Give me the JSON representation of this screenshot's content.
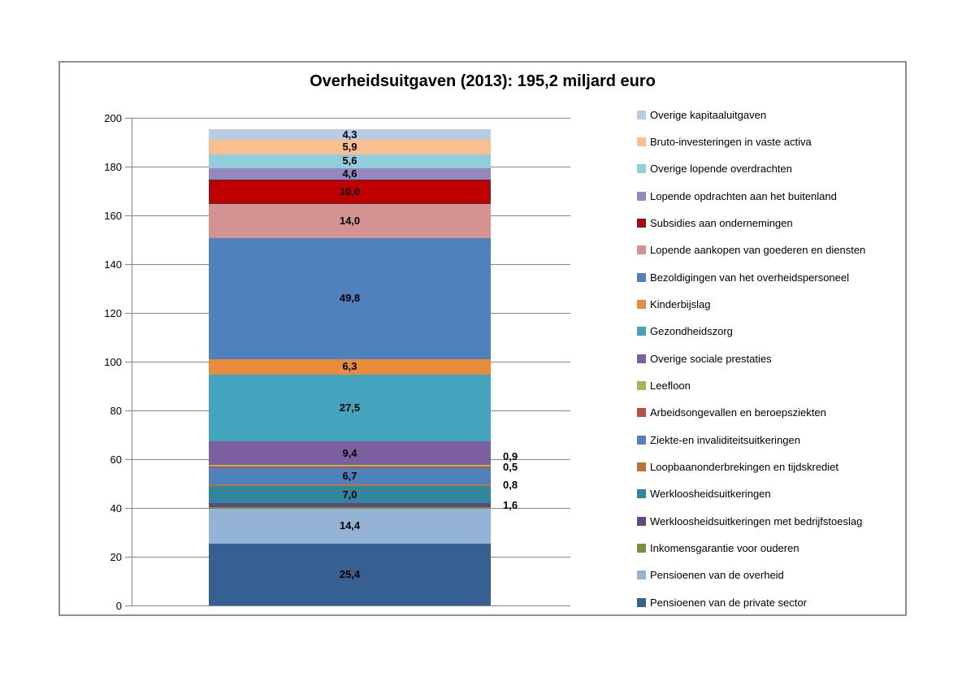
{
  "title": "Overheidsuitgaven (2013): 195,2 miljard euro",
  "chart_data": {
    "type": "bar",
    "subtype": "stacked-single-column",
    "title": "Overheidsuitgaven (2013): 195,2 miljard euro",
    "total_label": "195,2",
    "ylim": [
      0,
      200
    ],
    "yticks": [
      0,
      20,
      40,
      60,
      80,
      100,
      120,
      140,
      160,
      180,
      200
    ],
    "grid": true,
    "legend_position": "right",
    "axis_color": "#878787",
    "series_bottom_to_top": [
      {
        "name": "Pensioenen van de private sector",
        "value": 25.4,
        "label": "25,4",
        "color": "#376092",
        "label_pos": "inside"
      },
      {
        "name": "Pensioenen van de overheid",
        "value": 14.4,
        "label": "14,4",
        "color": "#95B3D7",
        "label_pos": "inside"
      },
      {
        "name": "Inkomensgarantie voor ouderen",
        "value": 0.5,
        "label": "",
        "color": "#76923C",
        "label_pos": "none"
      },
      {
        "name": "Werkloosheidsuitkeringen met bedrijfstoeslag",
        "value": 1.6,
        "label": "1,6",
        "color": "#5F497A",
        "label_pos": "outside"
      },
      {
        "name": "Werkloosheidsuitkeringen",
        "value": 7.0,
        "label": "7,0",
        "color": "#31859C",
        "label_pos": "inside"
      },
      {
        "name": "Loopbaanonderbrekingen en tijdskrediet",
        "value": 0.8,
        "label": "0,8",
        "color": "#BE7334",
        "label_pos": "outside"
      },
      {
        "name": "Ziekte-en invaliditeitsuitkeringen",
        "value": 6.7,
        "label": "6,7",
        "color": "#4F81BD",
        "label_pos": "inside"
      },
      {
        "name": "Arbeidsongevallen en beroepsziekten",
        "value": 0.5,
        "label": "0,5",
        "color": "#BE4B48",
        "label_pos": "outside"
      },
      {
        "name": "Leefloon",
        "value": 0.9,
        "label": "0,9",
        "color": "#9BBB59",
        "label_pos": "outside"
      },
      {
        "name": "Overige sociale prestaties",
        "value": 9.4,
        "label": "9,4",
        "color": "#7D60A0",
        "label_pos": "inside"
      },
      {
        "name": "Gezondheidszorg",
        "value": 27.5,
        "label": "27,5",
        "color": "#44A4BE",
        "label_pos": "inside"
      },
      {
        "name": "Kinderbijslag",
        "value": 6.3,
        "label": "6,3",
        "color": "#E68C3C",
        "label_pos": "inside"
      },
      {
        "name": "Bezoldigingen van het overheidspersoneel",
        "value": 49.8,
        "label": "49,8",
        "color": "#4F81BD",
        "label_pos": "inside"
      },
      {
        "name": "Lopende aankopen van goederen en diensten",
        "value": 14.0,
        "label": "14,0",
        "color": "#D49391",
        "label_pos": "inside"
      },
      {
        "name": "Subsidies aan ondernemingen",
        "value": 10.0,
        "label": "10,0",
        "color": "#C00000",
        "border": "#3F3151",
        "label_pos": "inside"
      },
      {
        "name": "Lopende opdrachten aan het buitenland",
        "value": 4.6,
        "label": "4,6",
        "color": "#9687BE",
        "label_pos": "inside"
      },
      {
        "name": "Overige lopende overdrachten",
        "value": 5.6,
        "label": "5,6",
        "color": "#92CDDC",
        "label_pos": "inside"
      },
      {
        "name": "Bruto-investeringen in vaste activa",
        "value": 5.9,
        "label": "5,9",
        "color": "#FABF8F",
        "label_pos": "inside"
      },
      {
        "name": "Overige kapitaaluitgaven",
        "value": 4.3,
        "label": "4,3",
        "color": "#B8CCE4",
        "label_pos": "inside"
      }
    ]
  }
}
